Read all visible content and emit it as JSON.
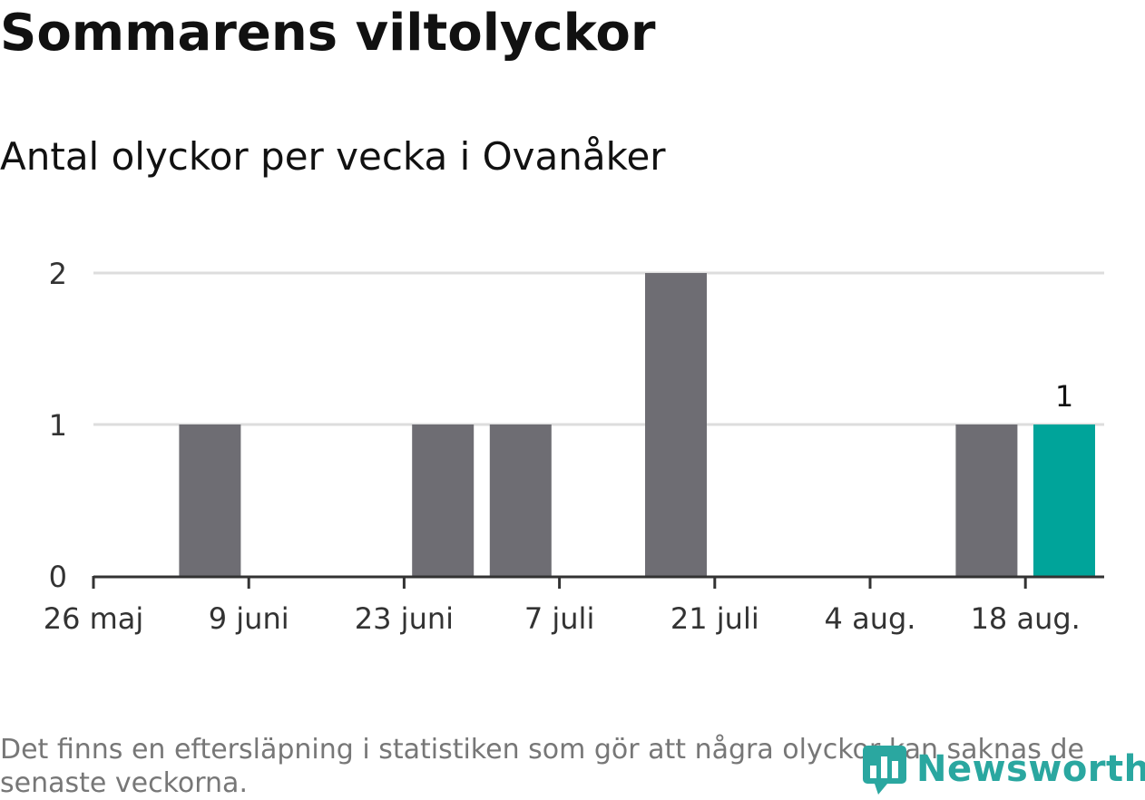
{
  "title": "Sommarens viltolyckor",
  "subtitle": "Antal olyckor per vecka i Ovanåker",
  "footnote": "Det finns en eftersläpning i statistiken som gör att några olyckor kan saknas de senaste veckorna.",
  "brand": "Newsworthy",
  "colors": {
    "bar": "#6e6d73",
    "highlight": "#00a49a",
    "grid": "#dddddd",
    "axis": "#333333",
    "brand": "#2aa7a0"
  },
  "chart_data": {
    "type": "bar",
    "title": "Antal olyckor per vecka i Ovanåker",
    "xlabel": "",
    "ylabel": "",
    "categories": [
      "2024-05-26",
      "2024-06-02",
      "2024-06-09",
      "2024-06-16",
      "2024-06-23",
      "2024-06-30",
      "2024-07-07",
      "2024-07-14",
      "2024-07-21",
      "2024-07-28",
      "2024-08-04",
      "2024-08-11",
      "2024-08-18"
    ],
    "values": [
      0,
      1,
      0,
      0,
      1,
      1,
      0,
      2,
      0,
      0,
      0,
      1,
      1
    ],
    "highlight_index": 12,
    "data_labels": [
      {
        "index": 12,
        "text": "1"
      }
    ],
    "ylim": [
      0,
      2
    ],
    "yticks": [
      "0",
      "1",
      "2"
    ],
    "xtick_labels": [
      {
        "index": 0,
        "label": "26 maj"
      },
      {
        "index": 2,
        "label": "9 juni"
      },
      {
        "index": 4,
        "label": "23 juni"
      },
      {
        "index": 6,
        "label": "7 juli"
      },
      {
        "index": 8,
        "label": "21 juli"
      },
      {
        "index": 10,
        "label": "4 aug."
      },
      {
        "index": 12,
        "label": "18 aug."
      }
    ],
    "grid": true,
    "legend": "none"
  }
}
